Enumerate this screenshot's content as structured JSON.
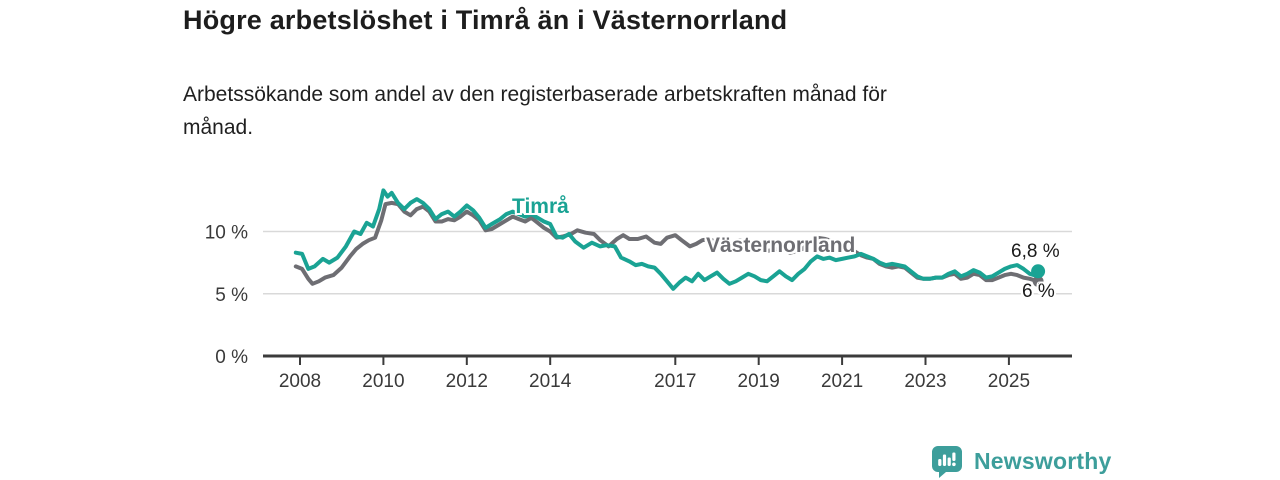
{
  "header": {
    "title": "Högre arbetslöshet i Timrå än i Västernorrland",
    "subtitle_line1": "Arbetssökande som andel av den registerbaserade arbetskraften månad för",
    "subtitle_line2": "månad."
  },
  "footer": {
    "brand": "Newsworthy",
    "brand_color": "#3d9e9b",
    "logo_icon": "speech-bubble-bar-chart"
  },
  "colors": {
    "background": "#ffffff",
    "axis": "#3b3b3b",
    "gridline": "#d9d9d9",
    "tick_label": "#3a3a3a",
    "annotation": "#1a1a1a",
    "timra": "#1aa394",
    "vasternorrland": "#6e6e73"
  },
  "chart_data": {
    "type": "line",
    "title": "Högre arbetslöshet i Timrå än i Västernorrland",
    "subtitle": "Arbetssökande som andel av den registerbaserade arbetskraften månad för månad.",
    "unit": "%",
    "grid": "horizontal-only",
    "legend_position": "inline-labels-on-lines",
    "x_axis": {
      "range": [
        2007.9,
        2025.9
      ],
      "ticks": [
        2008,
        2010,
        2012,
        2014,
        2017,
        2019,
        2021,
        2023,
        2025
      ]
    },
    "y_axis": {
      "range": [
        0,
        14
      ],
      "ticks": [
        {
          "value": 0,
          "label": "0 %"
        },
        {
          "value": 5,
          "label": "5 %"
        },
        {
          "value": 10,
          "label": "10 %"
        }
      ]
    },
    "series": [
      {
        "name": "Timrå",
        "color": "#1aa394",
        "end_label": "6,8 %",
        "end_value": 6.8,
        "end_dot_radius": 7,
        "points": [
          [
            2007.9,
            8.3
          ],
          [
            2008.05,
            8.2
          ],
          [
            2008.2,
            7.0
          ],
          [
            2008.35,
            7.2
          ],
          [
            2008.55,
            7.8
          ],
          [
            2008.7,
            7.5
          ],
          [
            2008.9,
            7.9
          ],
          [
            2009.1,
            8.8
          ],
          [
            2009.3,
            10.0
          ],
          [
            2009.45,
            9.8
          ],
          [
            2009.6,
            10.7
          ],
          [
            2009.75,
            10.4
          ],
          [
            2009.9,
            11.8
          ],
          [
            2010.0,
            13.3
          ],
          [
            2010.1,
            12.8
          ],
          [
            2010.2,
            13.1
          ],
          [
            2010.35,
            12.3
          ],
          [
            2010.5,
            11.8
          ],
          [
            2010.65,
            12.3
          ],
          [
            2010.8,
            12.6
          ],
          [
            2010.95,
            12.3
          ],
          [
            2011.1,
            11.8
          ],
          [
            2011.25,
            11.0
          ],
          [
            2011.4,
            11.4
          ],
          [
            2011.55,
            11.6
          ],
          [
            2011.7,
            11.2
          ],
          [
            2011.85,
            11.6
          ],
          [
            2012.0,
            12.1
          ],
          [
            2012.15,
            11.7
          ],
          [
            2012.3,
            11.1
          ],
          [
            2012.45,
            10.3
          ],
          [
            2012.6,
            10.6
          ],
          [
            2012.8,
            11.0
          ],
          [
            2012.95,
            11.4
          ],
          [
            2013.1,
            11.6
          ],
          [
            2013.25,
            11.4
          ],
          [
            2013.4,
            11.2
          ],
          [
            2013.55,
            11.4
          ],
          [
            2013.7,
            11.1
          ],
          [
            2013.85,
            10.8
          ],
          [
            2014.0,
            10.6
          ],
          [
            2014.15,
            9.6
          ],
          [
            2014.3,
            9.5
          ],
          [
            2014.45,
            9.8
          ],
          [
            2014.6,
            9.2
          ],
          [
            2014.8,
            8.7
          ],
          [
            2015.0,
            9.1
          ],
          [
            2015.2,
            8.8
          ],
          [
            2015.35,
            8.9
          ],
          [
            2015.55,
            8.8
          ],
          [
            2015.7,
            7.9
          ],
          [
            2015.9,
            7.6
          ],
          [
            2016.05,
            7.3
          ],
          [
            2016.2,
            7.4
          ],
          [
            2016.35,
            7.2
          ],
          [
            2016.5,
            7.1
          ],
          [
            2016.65,
            6.6
          ],
          [
            2016.8,
            6.0
          ],
          [
            2016.95,
            5.4
          ],
          [
            2017.1,
            5.9
          ],
          [
            2017.25,
            6.3
          ],
          [
            2017.4,
            6.0
          ],
          [
            2017.55,
            6.6
          ],
          [
            2017.7,
            6.1
          ],
          [
            2017.85,
            6.4
          ],
          [
            2018.0,
            6.7
          ],
          [
            2018.15,
            6.2
          ],
          [
            2018.3,
            5.8
          ],
          [
            2018.45,
            6.0
          ],
          [
            2018.6,
            6.3
          ],
          [
            2018.75,
            6.6
          ],
          [
            2018.9,
            6.4
          ],
          [
            2019.05,
            6.1
          ],
          [
            2019.2,
            6.0
          ],
          [
            2019.35,
            6.4
          ],
          [
            2019.5,
            6.8
          ],
          [
            2019.65,
            6.4
          ],
          [
            2019.8,
            6.1
          ],
          [
            2019.95,
            6.6
          ],
          [
            2020.1,
            7.0
          ],
          [
            2020.25,
            7.6
          ],
          [
            2020.4,
            8.0
          ],
          [
            2020.55,
            7.8
          ],
          [
            2020.7,
            7.9
          ],
          [
            2020.85,
            7.7
          ],
          [
            2021.0,
            7.8
          ],
          [
            2021.15,
            7.9
          ],
          [
            2021.3,
            8.0
          ],
          [
            2021.45,
            8.2
          ],
          [
            2021.6,
            8.0
          ],
          [
            2021.75,
            7.8
          ],
          [
            2021.9,
            7.5
          ],
          [
            2022.05,
            7.3
          ],
          [
            2022.2,
            7.4
          ],
          [
            2022.35,
            7.3
          ],
          [
            2022.5,
            7.2
          ],
          [
            2022.65,
            6.8
          ],
          [
            2022.8,
            6.4
          ],
          [
            2022.95,
            6.2
          ],
          [
            2023.1,
            6.2
          ],
          [
            2023.25,
            6.3
          ],
          [
            2023.4,
            6.3
          ],
          [
            2023.55,
            6.6
          ],
          [
            2023.7,
            6.8
          ],
          [
            2023.85,
            6.4
          ],
          [
            2024.0,
            6.6
          ],
          [
            2024.15,
            6.9
          ],
          [
            2024.3,
            6.7
          ],
          [
            2024.45,
            6.3
          ],
          [
            2024.6,
            6.4
          ],
          [
            2024.75,
            6.7
          ],
          [
            2024.9,
            7.0
          ],
          [
            2025.05,
            7.2
          ],
          [
            2025.2,
            7.3
          ],
          [
            2025.35,
            7.0
          ],
          [
            2025.5,
            6.6
          ],
          [
            2025.6,
            6.5
          ],
          [
            2025.7,
            6.8
          ]
        ]
      },
      {
        "name": "Västernorrland",
        "color": "#6e6e73",
        "end_label": "6 %",
        "end_value": 6.0,
        "end_dot_radius": 5.5,
        "points": [
          [
            2007.9,
            7.2
          ],
          [
            2008.05,
            7.0
          ],
          [
            2008.2,
            6.2
          ],
          [
            2008.3,
            5.8
          ],
          [
            2008.45,
            6.0
          ],
          [
            2008.6,
            6.3
          ],
          [
            2008.8,
            6.5
          ],
          [
            2009.0,
            7.1
          ],
          [
            2009.2,
            8.0
          ],
          [
            2009.35,
            8.6
          ],
          [
            2009.5,
            9.0
          ],
          [
            2009.65,
            9.3
          ],
          [
            2009.8,
            9.5
          ],
          [
            2009.95,
            10.9
          ],
          [
            2010.05,
            12.2
          ],
          [
            2010.2,
            12.3
          ],
          [
            2010.35,
            12.2
          ],
          [
            2010.5,
            11.6
          ],
          [
            2010.65,
            11.3
          ],
          [
            2010.8,
            11.8
          ],
          [
            2010.95,
            12.0
          ],
          [
            2011.1,
            11.6
          ],
          [
            2011.25,
            10.8
          ],
          [
            2011.4,
            10.8
          ],
          [
            2011.55,
            11.0
          ],
          [
            2011.7,
            10.9
          ],
          [
            2011.85,
            11.2
          ],
          [
            2012.0,
            11.6
          ],
          [
            2012.15,
            11.3
          ],
          [
            2012.3,
            10.9
          ],
          [
            2012.45,
            10.1
          ],
          [
            2012.6,
            10.2
          ],
          [
            2012.8,
            10.6
          ],
          [
            2012.95,
            10.9
          ],
          [
            2013.1,
            11.2
          ],
          [
            2013.25,
            11.0
          ],
          [
            2013.4,
            10.8
          ],
          [
            2013.55,
            11.1
          ],
          [
            2013.7,
            10.7
          ],
          [
            2013.85,
            10.3
          ],
          [
            2014.0,
            10.0
          ],
          [
            2014.15,
            9.5
          ],
          [
            2014.3,
            9.6
          ],
          [
            2014.5,
            9.8
          ],
          [
            2014.65,
            10.1
          ],
          [
            2014.85,
            9.9
          ],
          [
            2015.05,
            9.8
          ],
          [
            2015.2,
            9.3
          ],
          [
            2015.4,
            8.8
          ],
          [
            2015.6,
            9.4
          ],
          [
            2015.75,
            9.7
          ],
          [
            2015.9,
            9.4
          ],
          [
            2016.1,
            9.4
          ],
          [
            2016.3,
            9.6
          ],
          [
            2016.5,
            9.1
          ],
          [
            2016.65,
            9.0
          ],
          [
            2016.8,
            9.5
          ],
          [
            2017.0,
            9.7
          ],
          [
            2017.15,
            9.3
          ],
          [
            2017.35,
            8.8
          ],
          [
            2017.5,
            9.0
          ],
          [
            2017.65,
            9.3
          ],
          [
            2017.8,
            9.4
          ],
          [
            2017.95,
            9.2
          ],
          [
            2018.1,
            8.9
          ],
          [
            2018.25,
            9.0
          ],
          [
            2018.4,
            9.2
          ],
          [
            2018.55,
            9.3
          ],
          [
            2018.7,
            9.1
          ],
          [
            2018.85,
            8.9
          ],
          [
            2019.0,
            8.6
          ],
          [
            2019.15,
            8.4
          ],
          [
            2019.3,
            8.5
          ],
          [
            2019.45,
            8.6
          ],
          [
            2019.6,
            8.5
          ],
          [
            2019.75,
            8.3
          ],
          [
            2019.9,
            8.4
          ],
          [
            2020.05,
            8.6
          ],
          [
            2020.2,
            9.1
          ],
          [
            2020.4,
            9.5
          ],
          [
            2020.6,
            9.4
          ],
          [
            2020.8,
            9.2
          ],
          [
            2021.0,
            9.0
          ],
          [
            2021.15,
            8.7
          ],
          [
            2021.3,
            8.4
          ],
          [
            2021.45,
            8.1
          ],
          [
            2021.6,
            7.9
          ],
          [
            2021.75,
            7.8
          ],
          [
            2021.9,
            7.4
          ],
          [
            2022.05,
            7.2
          ],
          [
            2022.2,
            7.1
          ],
          [
            2022.35,
            7.2
          ],
          [
            2022.5,
            7.1
          ],
          [
            2022.65,
            6.7
          ],
          [
            2022.8,
            6.3
          ],
          [
            2022.95,
            6.2
          ],
          [
            2023.1,
            6.2
          ],
          [
            2023.25,
            6.3
          ],
          [
            2023.4,
            6.3
          ],
          [
            2023.55,
            6.5
          ],
          [
            2023.7,
            6.6
          ],
          [
            2023.85,
            6.2
          ],
          [
            2024.0,
            6.3
          ],
          [
            2024.15,
            6.6
          ],
          [
            2024.3,
            6.5
          ],
          [
            2024.45,
            6.1
          ],
          [
            2024.6,
            6.1
          ],
          [
            2024.75,
            6.3
          ],
          [
            2024.9,
            6.5
          ],
          [
            2025.05,
            6.6
          ],
          [
            2025.2,
            6.5
          ],
          [
            2025.35,
            6.3
          ],
          [
            2025.5,
            6.2
          ],
          [
            2025.6,
            6.1
          ],
          [
            2025.7,
            6.0
          ]
        ]
      }
    ]
  }
}
